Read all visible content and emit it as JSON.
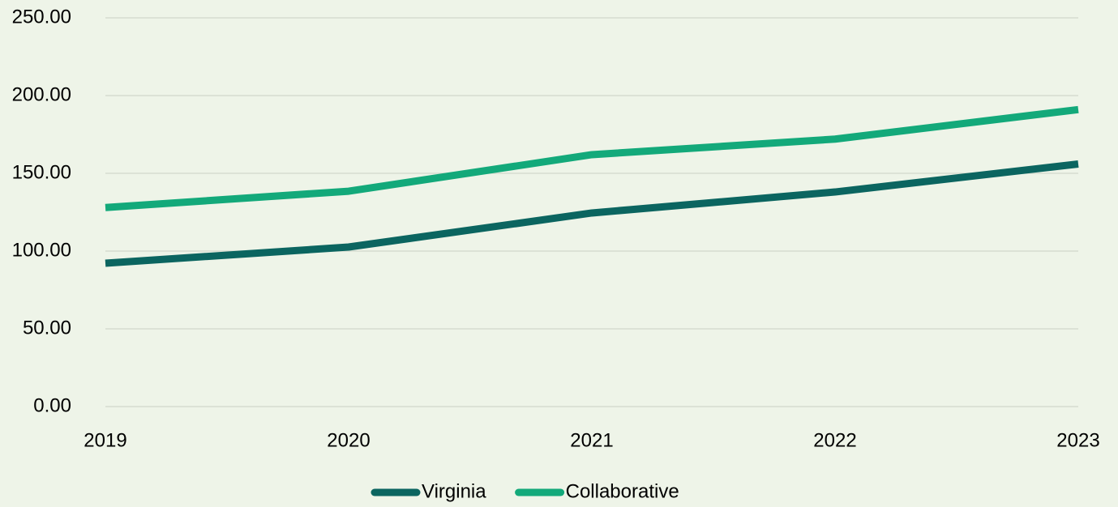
{
  "chart_data": {
    "type": "line",
    "categories": [
      "2019",
      "2020",
      "2021",
      "2022",
      "2023"
    ],
    "series": [
      {
        "name": "Virginia",
        "color": "#0b6560",
        "values": [
          92.2,
          102.6,
          124.5,
          138,
          156
        ]
      },
      {
        "name": "Collaborative",
        "color": "#13a97a",
        "values": [
          128,
          138.5,
          162,
          172,
          191
        ]
      }
    ],
    "ylim": [
      0,
      250
    ],
    "yticks": [
      {
        "value": 0,
        "label": "0.00"
      },
      {
        "value": 50,
        "label": "50.00"
      },
      {
        "value": 100,
        "label": "100.00"
      },
      {
        "value": 150,
        "label": "150.00"
      },
      {
        "value": 200,
        "label": "200.00"
      },
      {
        "value": 250,
        "label": "250.00"
      }
    ],
    "grid": true,
    "legend": "bottom"
  }
}
